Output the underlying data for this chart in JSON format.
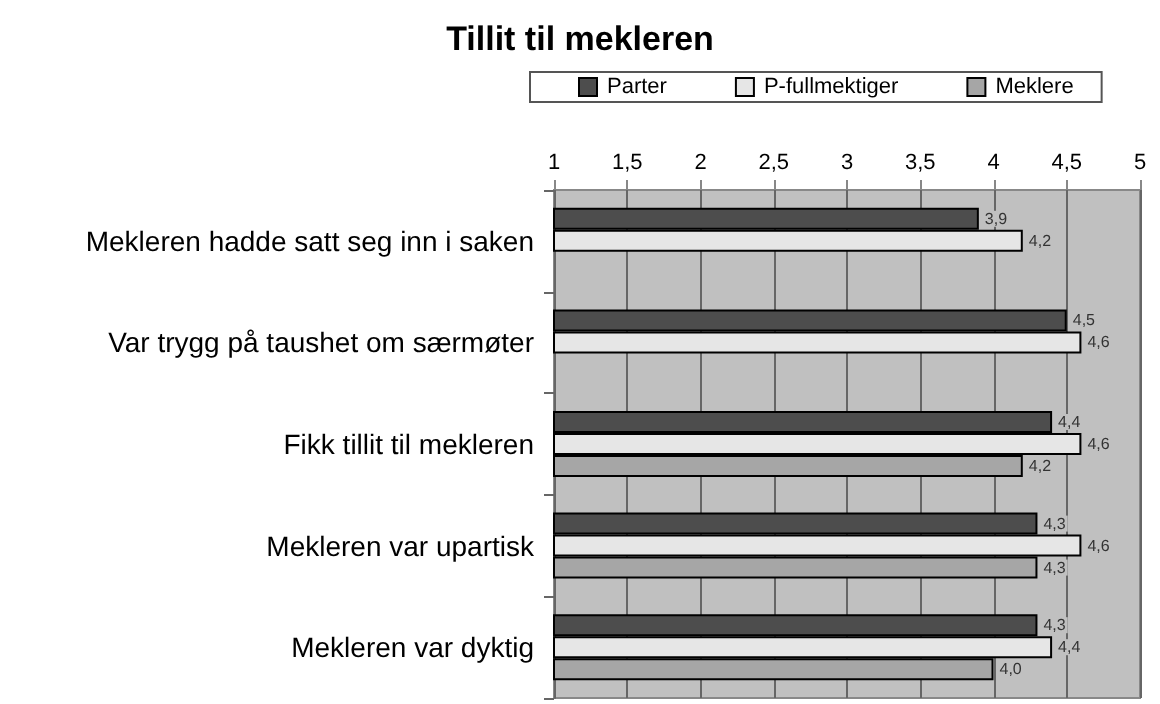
{
  "chart_data": {
    "type": "bar",
    "orientation": "horizontal",
    "title": "Tillit til mekleren",
    "categories": [
      "Mekleren hadde satt seg inn i saken",
      "Var trygg på taushet om særmøter",
      "Fikk tillit til mekleren",
      "Mekleren var upartisk",
      "Mekleren var dyktig"
    ],
    "series": [
      {
        "name": "Parter",
        "color": "#4d4d4d",
        "values": [
          3.9,
          4.5,
          4.4,
          4.3,
          4.3
        ],
        "value_labels": [
          "3,9",
          "4,5",
          "4,4",
          "4,3",
          "4,3"
        ]
      },
      {
        "name": "P-fullmektiger",
        "color": "#e6e6e6",
        "values": [
          4.2,
          4.6,
          4.6,
          4.6,
          4.4
        ],
        "value_labels": [
          "4,2",
          "4,6",
          "4,6",
          "4,6",
          "4,4"
        ]
      },
      {
        "name": "Meklere",
        "color": "#a6a6a6",
        "values": [
          null,
          null,
          4.2,
          4.3,
          4.0
        ],
        "value_labels": [
          null,
          null,
          "4,2",
          "4,3",
          "4,0"
        ]
      }
    ],
    "xlim": [
      1,
      5
    ],
    "xticks": [
      1,
      {
        "value": 1.5,
        "label": "1,5"
      },
      2,
      {
        "value": 2.5,
        "label": "2,5"
      },
      3,
      {
        "value": 3.5,
        "label": "3,5"
      },
      4,
      {
        "value": 4.5,
        "label": "4,5"
      },
      5
    ],
    "grid": "x",
    "legend": "top"
  }
}
